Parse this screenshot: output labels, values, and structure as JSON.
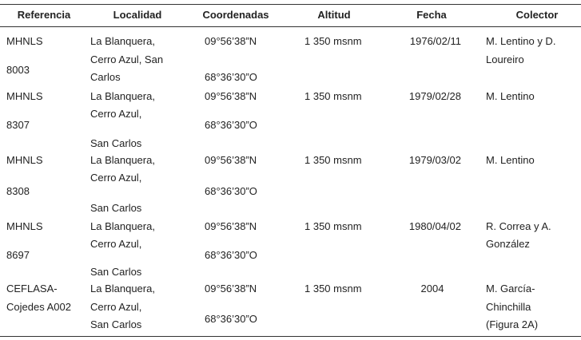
{
  "table": {
    "header": [
      "Referencia",
      "Localidad",
      "Coordenadas",
      "Altitud",
      "Fecha",
      "Colector"
    ],
    "rows": [
      [
        [
          "MHNLS",
          "8003"
        ],
        [
          "La Blanquera,",
          "Cerro Azul, San",
          "Carlos"
        ],
        [
          "09°56’38”N",
          "68°36’30”O"
        ],
        [
          "1 350 msnm"
        ],
        [
          "1976/02/11"
        ],
        [
          "M. Lentino y D.",
          "Loureiro"
        ]
      ],
      [
        [
          "MHNLS",
          "8307"
        ],
        [
          "La Blanquera,",
          "Cerro Azul,",
          "San Carlos"
        ],
        [
          "09°56’38”N",
          "68°36’30”O"
        ],
        [
          "1 350 msnm"
        ],
        [
          "1979/02/28"
        ],
        [
          "M. Lentino"
        ]
      ],
      [
        [
          "MHNLS",
          "8308"
        ],
        [
          "La Blanquera,",
          "Cerro Azul,",
          "San Carlos"
        ],
        [
          "09°56’38”N",
          "68°36’30”O"
        ],
        [
          "1 350 msnm"
        ],
        [
          "1979/03/02"
        ],
        [
          "M. Lentino"
        ]
      ],
      [
        [
          "MHNLS",
          "8697"
        ],
        [
          "La Blanquera,",
          "Cerro Azul,",
          "San Carlos"
        ],
        [
          "09°56’38”N",
          "68°36’30”O"
        ],
        [
          "1 350 msnm"
        ],
        [
          "1980/04/02"
        ],
        [
          "R. Correa y A.",
          "González"
        ]
      ],
      [
        [
          "CEFLASA-",
          "Cojedes A002"
        ],
        [
          "La Blanquera,",
          "Cerro Azul,",
          "San Carlos"
        ],
        [
          "09°56’38”N",
          "68°36’30”O"
        ],
        [
          "1 350 msnm"
        ],
        [
          "2004"
        ],
        [
          "M. García-",
          "Chinchilla",
          "(Figura 2A)"
        ]
      ]
    ]
  }
}
